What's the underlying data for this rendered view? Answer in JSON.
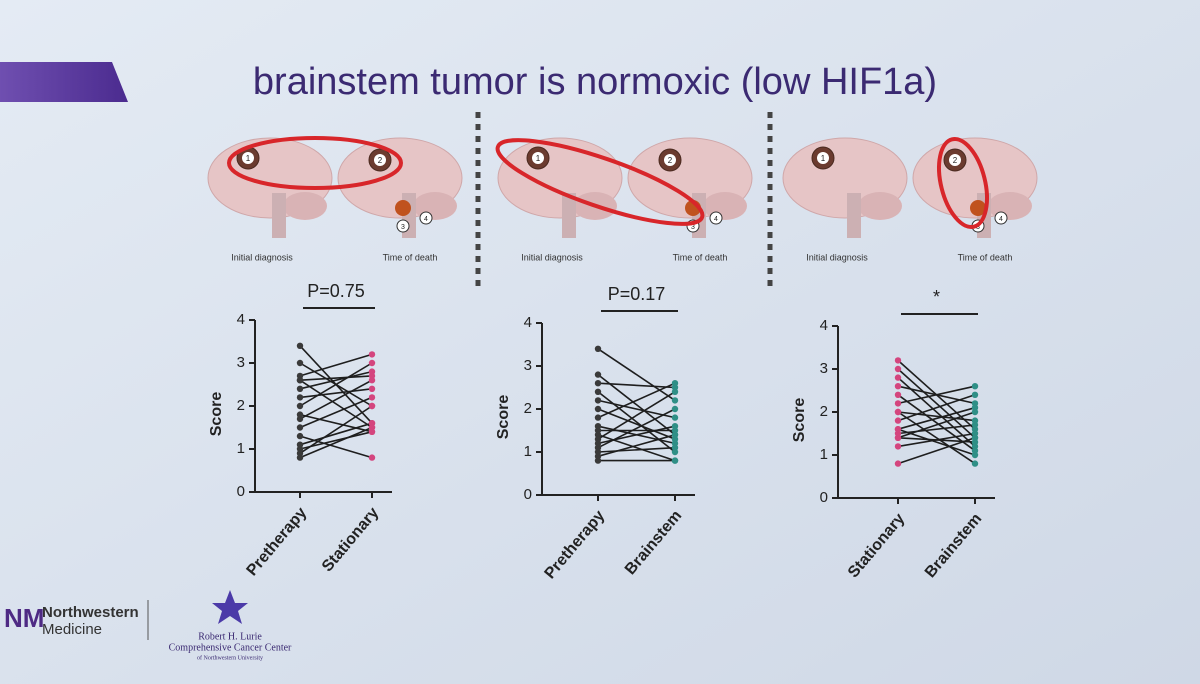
{
  "slide": {
    "title": "brainstem tumor is normoxic (low HIF1a)",
    "panels": [
      {
        "labels": [
          "Initial diagnosis",
          "Time of death"
        ],
        "markers": [
          "1",
          "2",
          "3",
          "4"
        ]
      },
      {
        "labels": [
          "Initial diagnosis",
          "Time of death"
        ],
        "markers": [
          "1",
          "2",
          "3",
          "4"
        ]
      },
      {
        "labels": [
          "Initial diagnosis",
          "Time of death"
        ],
        "markers": [
          "1",
          "2",
          "3",
          "4"
        ]
      }
    ],
    "logos": {
      "nm": "NM",
      "northwestern": "Northwestern",
      "medicine": "Medicine",
      "lurie": "Robert H. Lurie",
      "center": "Comprehensive Cancer Center",
      "university": "of Northwestern University"
    }
  },
  "chart_data": [
    {
      "type": "paired",
      "annotation": "P=0.75",
      "y_label": "Score",
      "categories": [
        "Pretherapy",
        "Stationary"
      ],
      "point_colors": [
        "#3a3a3a",
        "#d4457e"
      ],
      "line_color": "#1e1e1e",
      "ylim": [
        0,
        4
      ],
      "yticks": [
        0,
        1,
        2,
        3,
        4
      ],
      "pairs": [
        [
          3.4,
          1.6
        ],
        [
          3.0,
          2.0
        ],
        [
          2.7,
          3.2
        ],
        [
          2.6,
          1.5
        ],
        [
          2.4,
          2.8
        ],
        [
          2.2,
          2.4
        ],
        [
          2.0,
          3.0
        ],
        [
          1.8,
          1.4
        ],
        [
          1.7,
          2.6
        ],
        [
          1.5,
          2.2
        ],
        [
          1.3,
          0.8
        ],
        [
          1.1,
          1.6
        ],
        [
          0.9,
          2.0
        ],
        [
          0.8,
          1.5
        ],
        [
          2.6,
          2.7
        ],
        [
          1.0,
          1.4
        ]
      ]
    },
    {
      "type": "paired",
      "annotation": "P=0.17",
      "y_label": "Score",
      "categories": [
        "Pretherapy",
        "Brainstem"
      ],
      "point_colors": [
        "#3a3a3a",
        "#2f8f86"
      ],
      "line_color": "#1e1e1e",
      "ylim": [
        0,
        4
      ],
      "yticks": [
        0,
        1,
        2,
        3,
        4
      ],
      "pairs": [
        [
          3.4,
          2.2
        ],
        [
          2.8,
          1.4
        ],
        [
          2.6,
          2.5
        ],
        [
          2.4,
          1.0
        ],
        [
          2.2,
          1.8
        ],
        [
          2.0,
          1.3
        ],
        [
          1.8,
          2.6
        ],
        [
          1.6,
          1.2
        ],
        [
          1.5,
          1.5
        ],
        [
          1.4,
          0.8
        ],
        [
          1.3,
          2.4
        ],
        [
          1.2,
          1.6
        ],
        [
          1.0,
          1.1
        ],
        [
          0.9,
          1.4
        ],
        [
          0.8,
          0.8
        ],
        [
          1.1,
          2.0
        ]
      ]
    },
    {
      "type": "paired",
      "annotation": "*",
      "y_label": "Score",
      "categories": [
        "Stationary",
        "Brainstem"
      ],
      "point_colors": [
        "#d4457e",
        "#2f8f86"
      ],
      "line_color": "#1e1e1e",
      "ylim": [
        0,
        4
      ],
      "yticks": [
        0,
        1,
        2,
        3,
        4
      ],
      "pairs": [
        [
          3.2,
          1.6
        ],
        [
          3.0,
          1.4
        ],
        [
          2.8,
          1.2
        ],
        [
          2.6,
          2.2
        ],
        [
          2.4,
          1.1
        ],
        [
          2.2,
          2.6
        ],
        [
          2.0,
          1.8
        ],
        [
          1.8,
          2.4
        ],
        [
          1.6,
          1.0
        ],
        [
          1.4,
          1.3
        ],
        [
          1.4,
          2.0
        ],
        [
          1.2,
          1.5
        ],
        [
          0.8,
          1.4
        ],
        [
          2.0,
          0.8
        ],
        [
          1.5,
          1.7
        ],
        [
          1.6,
          2.1
        ]
      ]
    }
  ]
}
